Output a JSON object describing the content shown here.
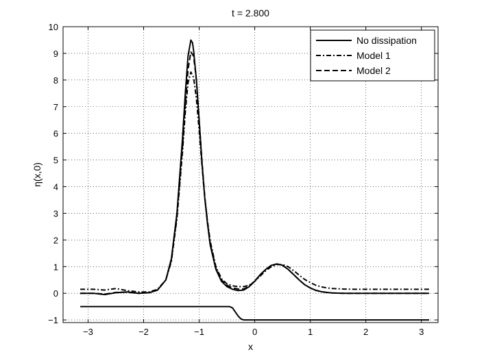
{
  "chart_data": {
    "type": "line",
    "title": "t = 2.800",
    "xlabel": "x",
    "ylabel": "η(x,0)",
    "xlim": [
      -3.45,
      3.3
    ],
    "ylim": [
      -1.1,
      10
    ],
    "x_ticks": [
      -3,
      -2,
      -1,
      0,
      1,
      2,
      3
    ],
    "x_tick_labels": [
      "−3",
      "−2",
      "−1",
      "0",
      "1",
      "2",
      "3"
    ],
    "y_ticks": [
      -1,
      0,
      1,
      2,
      3,
      4,
      5,
      6,
      7,
      8,
      9,
      10
    ],
    "y_tick_labels": [
      "−1",
      "0",
      "1",
      "2",
      "3",
      "4",
      "5",
      "6",
      "7",
      "8",
      "9",
      "10"
    ],
    "grid": true,
    "legend_position": "top-right",
    "series": [
      {
        "name": "No dissipation",
        "style": "solid",
        "color": "#000000",
        "x": [
          -3.14,
          -2.9,
          -2.7,
          -2.5,
          -2.3,
          -2.1,
          -1.9,
          -1.75,
          -1.6,
          -1.5,
          -1.4,
          -1.3,
          -1.25,
          -1.2,
          -1.15,
          -1.12,
          -1.1,
          -1.05,
          -1.0,
          -0.95,
          -0.9,
          -0.85,
          -0.8,
          -0.7,
          -0.6,
          -0.5,
          -0.4,
          -0.3,
          -0.2,
          -0.1,
          0.0,
          0.1,
          0.2,
          0.3,
          0.4,
          0.5,
          0.6,
          0.7,
          0.8,
          0.9,
          1.0,
          1.1,
          1.2,
          1.3,
          1.4,
          1.6,
          1.8,
          2.0,
          2.3,
          2.6,
          3.14
        ],
        "values": [
          0.0,
          0.0,
          -0.05,
          0.02,
          0.05,
          0.0,
          0.02,
          0.12,
          0.5,
          1.3,
          3.0,
          5.8,
          7.5,
          8.9,
          9.5,
          9.4,
          9.1,
          8.0,
          6.5,
          4.9,
          3.6,
          2.6,
          1.8,
          0.9,
          0.45,
          0.25,
          0.15,
          0.1,
          0.12,
          0.25,
          0.45,
          0.7,
          0.9,
          1.05,
          1.1,
          1.05,
          0.9,
          0.7,
          0.5,
          0.32,
          0.2,
          0.11,
          0.06,
          0.03,
          0.01,
          0.0,
          0.0,
          0.0,
          0.0,
          0.0,
          0.0
        ]
      },
      {
        "name": "Model 1",
        "style": "dashdot",
        "color": "#000000",
        "x": [
          -3.14,
          -2.9,
          -2.7,
          -2.5,
          -2.3,
          -2.1,
          -1.9,
          -1.75,
          -1.6,
          -1.5,
          -1.4,
          -1.3,
          -1.25,
          -1.2,
          -1.15,
          -1.1,
          -1.05,
          -1.0,
          -0.95,
          -0.9,
          -0.85,
          -0.8,
          -0.7,
          -0.6,
          -0.5,
          -0.4,
          -0.3,
          -0.2,
          -0.1,
          0.0,
          0.1,
          0.2,
          0.3,
          0.4,
          0.5,
          0.6,
          0.7,
          0.8,
          0.9,
          1.0,
          1.1,
          1.2,
          1.3,
          1.4,
          1.6,
          1.8,
          2.0,
          2.3,
          2.6,
          3.14
        ],
        "values": [
          0.15,
          0.15,
          0.12,
          0.18,
          0.1,
          0.05,
          0.05,
          0.15,
          0.5,
          1.2,
          2.8,
          5.3,
          6.8,
          7.9,
          8.3,
          8.1,
          7.3,
          6.1,
          4.8,
          3.6,
          2.7,
          1.95,
          1.0,
          0.55,
          0.35,
          0.28,
          0.25,
          0.25,
          0.3,
          0.45,
          0.65,
          0.85,
          1.0,
          1.08,
          1.08,
          1.0,
          0.85,
          0.68,
          0.52,
          0.4,
          0.3,
          0.24,
          0.2,
          0.18,
          0.16,
          0.15,
          0.15,
          0.15,
          0.15,
          0.15
        ]
      },
      {
        "name": "Model 2",
        "style": "dashed",
        "color": "#000000",
        "x": [
          -3.14,
          -2.9,
          -2.7,
          -2.5,
          -2.3,
          -2.1,
          -1.9,
          -1.75,
          -1.6,
          -1.5,
          -1.4,
          -1.3,
          -1.25,
          -1.2,
          -1.15,
          -1.1,
          -1.05,
          -1.0,
          -0.95,
          -0.9,
          -0.85,
          -0.8,
          -0.7,
          -0.6,
          -0.5,
          -0.4,
          -0.3,
          -0.2,
          -0.1,
          0.0,
          0.1,
          0.2,
          0.3,
          0.4,
          0.5,
          0.6,
          0.7,
          0.8,
          0.9,
          1.0,
          1.1,
          1.2,
          1.3,
          1.4,
          1.6,
          1.8,
          2.0,
          2.3,
          2.6,
          3.14
        ],
        "values": [
          0.0,
          0.0,
          -0.03,
          0.03,
          0.04,
          0.0,
          0.02,
          0.12,
          0.5,
          1.25,
          2.9,
          5.5,
          7.1,
          8.4,
          9.05,
          8.9,
          8.0,
          6.5,
          4.95,
          3.65,
          2.65,
          1.85,
          0.95,
          0.5,
          0.3,
          0.2,
          0.16,
          0.16,
          0.27,
          0.46,
          0.7,
          0.9,
          1.05,
          1.1,
          1.05,
          0.9,
          0.7,
          0.5,
          0.32,
          0.2,
          0.11,
          0.06,
          0.03,
          0.01,
          0.0,
          0.0,
          0.0,
          0.0,
          0.0,
          0.0
        ]
      },
      {
        "style": "solid",
        "color": "#000000",
        "x": [
          -3.14,
          -2.5,
          -2.0,
          -1.5,
          -1.0,
          -0.6,
          -0.45,
          -0.4,
          -0.35,
          -0.3,
          -0.25,
          -0.2,
          -0.15,
          0.0,
          0.5,
          1.0,
          1.5,
          2.0,
          2.5,
          3.14
        ],
        "values": [
          -0.5,
          -0.5,
          -0.5,
          -0.5,
          -0.5,
          -0.5,
          -0.5,
          -0.55,
          -0.7,
          -0.85,
          -0.96,
          -1.0,
          -1.0,
          -1.0,
          -1.0,
          -1.0,
          -1.0,
          -1.0,
          -1.0,
          -1.0
        ]
      }
    ]
  }
}
